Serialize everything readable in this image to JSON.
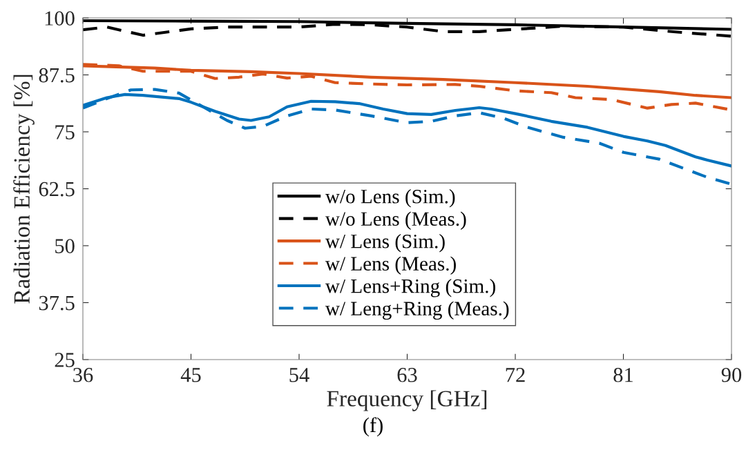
{
  "chart_data": {
    "type": "line",
    "xlabel": "Frequency [GHz]",
    "ylabel": "Radiation Efficiency [%]",
    "annotations": [
      "(f)"
    ],
    "xlim": [
      36,
      90
    ],
    "xticks": [
      36,
      45,
      54,
      63,
      72,
      81,
      90
    ],
    "ylim": [
      25,
      100
    ],
    "yticks": [
      25,
      37.5,
      50,
      62.5,
      75,
      87.5,
      100
    ],
    "grid": false,
    "legend": "bottom",
    "marker": "none",
    "series": [
      {
        "name": "w/o Lens (Sim.)",
        "color": "#000000",
        "line_style": "solid",
        "x": [
          36,
          45,
          54,
          63,
          72,
          81,
          90
        ],
        "values": [
          99.4,
          99.3,
          99.2,
          98.8,
          98.5,
          98.0,
          97.5
        ]
      },
      {
        "name": "w/o Lens (Meas.)",
        "color": "#000000",
        "line_style": "dashed",
        "x": [
          36,
          38,
          41,
          45,
          48,
          54,
          57,
          60,
          63,
          66,
          69,
          72,
          76,
          81,
          85,
          90
        ],
        "values": [
          97.4,
          98,
          96.2,
          97.6,
          98,
          98,
          98.6,
          98.5,
          98.0,
          97.0,
          97.0,
          97.5,
          98.2,
          98.0,
          97.0,
          96.0
        ]
      },
      {
        "name": "w/ Lens (Sim.)",
        "color": "#d95319",
        "line_style": "solid",
        "x": [
          36,
          42,
          45,
          50,
          54,
          60,
          66,
          72,
          78,
          84,
          87,
          90
        ],
        "values": [
          89.5,
          89.0,
          88.5,
          88.2,
          87.8,
          87.0,
          86.5,
          85.8,
          85.0,
          83.8,
          83.0,
          82.5
        ]
      },
      {
        "name": "w/ Lens (Meas.)",
        "color": "#d95319",
        "line_style": "dashed",
        "x": [
          36,
          39,
          41,
          45,
          47,
          49,
          51,
          53,
          55,
          57,
          60,
          63,
          67,
          69,
          72,
          75,
          77,
          80,
          83,
          85,
          87,
          90
        ],
        "values": [
          89.8,
          89.5,
          88.3,
          88.3,
          86.7,
          87.0,
          87.7,
          86.8,
          87.2,
          85.8,
          85.5,
          85.3,
          85.4,
          85.0,
          84.0,
          83.6,
          82.5,
          82.1,
          80.2,
          81.0,
          81.3,
          79.8
        ]
      },
      {
        "name": "w/ Lens+Ring (Sim.)",
        "color": "#0072bd",
        "line_style": "solid",
        "x": [
          36,
          38,
          39.5,
          41,
          44,
          45,
          47,
          49,
          50,
          51.5,
          53,
          55,
          57,
          59,
          61,
          63,
          65,
          67,
          69,
          70,
          72,
          75,
          78,
          81,
          83,
          84.5,
          87,
          88,
          90
        ],
        "values": [
          80.8,
          82.5,
          83.2,
          83.0,
          82.3,
          81.5,
          79.5,
          77.8,
          77.5,
          78.3,
          80.5,
          81.7,
          81.6,
          81.2,
          80.0,
          79.0,
          78.8,
          79.7,
          80.3,
          80.0,
          79.0,
          77.3,
          76.0,
          74.0,
          73.0,
          72.0,
          69.5,
          68.8,
          67.5
        ]
      },
      {
        "name": "w/ Leng+Ring (Meas.)",
        "color": "#0072bd",
        "line_style": "dashed",
        "x": [
          36,
          38,
          40,
          42,
          44,
          46,
          48,
          49.5,
          51,
          53,
          55,
          57,
          60,
          63,
          65,
          67,
          69,
          71,
          73,
          76,
          79,
          81,
          84,
          86,
          88,
          90
        ],
        "values": [
          80.2,
          82.3,
          84.2,
          84.3,
          83.5,
          80.5,
          77.5,
          75.8,
          76.2,
          78.5,
          80.0,
          79.8,
          78.5,
          77.0,
          77.3,
          78.5,
          79.2,
          78.0,
          76.0,
          73.8,
          72.5,
          70.5,
          69.0,
          67.0,
          65.0,
          63.5
        ]
      }
    ]
  }
}
